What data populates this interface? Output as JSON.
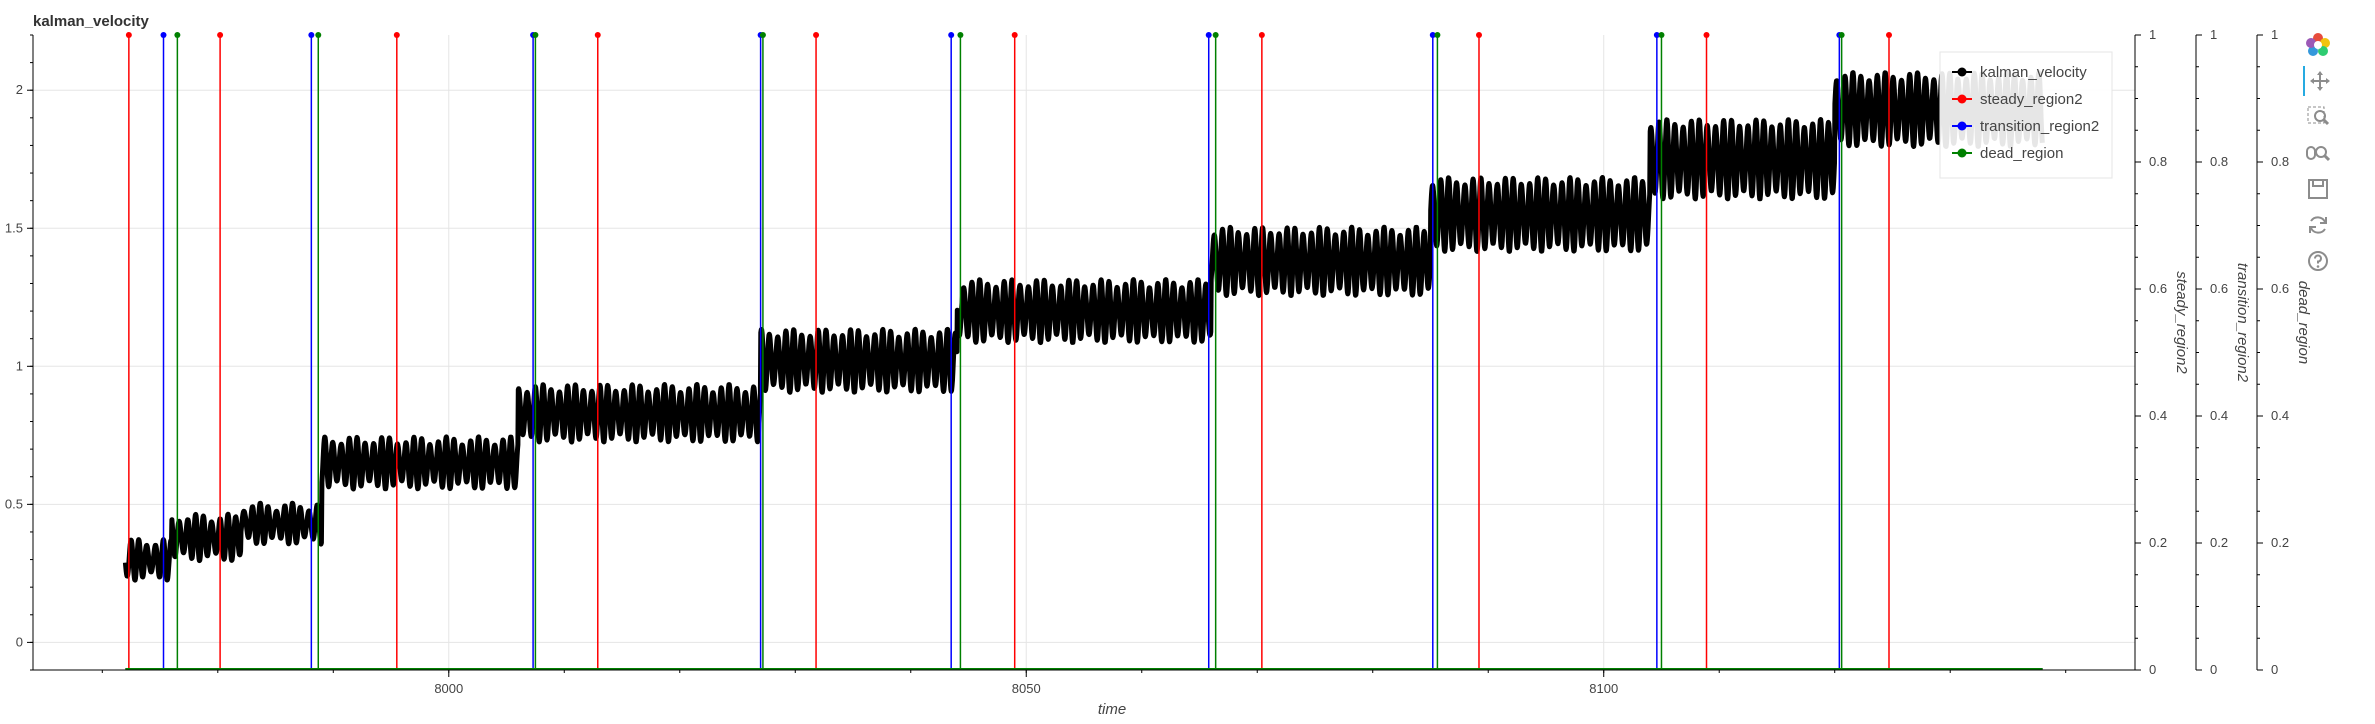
{
  "toolbar": {
    "items": [
      {
        "icon": "bokeh-logo-icon"
      },
      {
        "icon": "pan-icon"
      },
      {
        "icon": "box-zoom-icon"
      },
      {
        "icon": "wheel-zoom-icon"
      },
      {
        "icon": "save-icon"
      },
      {
        "icon": "reset-icon"
      },
      {
        "icon": "help-icon"
      }
    ]
  },
  "chart_data": {
    "type": "line",
    "title": "kalman_velocity",
    "xlabel": "time",
    "xlim": [
      7964,
      8146
    ],
    "ylim": [
      -0.1,
      2.2
    ],
    "x_ticks": [
      8000,
      8050,
      8100
    ],
    "y_ticks": [
      0,
      0.5,
      1,
      1.5,
      2
    ],
    "y_tick_labels": [
      "0",
      "0.5",
      "1",
      "1.5",
      "2"
    ],
    "grid": true,
    "legend_position": "top-right",
    "right_axes": [
      {
        "label": "steady_region2",
        "range": [
          0,
          1
        ],
        "ticks": [
          "0",
          "0.2",
          "0.4",
          "0.6",
          "0.8",
          "1"
        ]
      },
      {
        "label": "transition_region2",
        "range": [
          0,
          1
        ],
        "ticks": [
          "0",
          "0.2",
          "0.4",
          "0.6",
          "0.8",
          "1"
        ]
      },
      {
        "label": "dead_region",
        "range": [
          0,
          1
        ],
        "ticks": [
          "0",
          "0.2",
          "0.4",
          "0.6",
          "0.8",
          "1"
        ]
      }
    ],
    "series": [
      {
        "name": "kalman_velocity",
        "color": "#000000",
        "x_range": [
          7972,
          8138
        ],
        "segments": [
          {
            "x": [
              7972,
              7976
            ],
            "level": 0.3,
            "amplitude": 0.06
          },
          {
            "x": [
              7976,
              7982
            ],
            "level": 0.38,
            "amplitude": 0.07
          },
          {
            "x": [
              7982,
              7989
            ],
            "level": 0.43,
            "amplitude": 0.06
          },
          {
            "x": [
              7989,
              8006
            ],
            "level": 0.65,
            "amplitude": 0.08
          },
          {
            "x": [
              8006,
              8027
            ],
            "level": 0.83,
            "amplitude": 0.09
          },
          {
            "x": [
              8027,
              8044
            ],
            "level": 1.02,
            "amplitude": 0.1
          },
          {
            "x": [
              8044,
              8066
            ],
            "level": 1.2,
            "amplitude": 0.1
          },
          {
            "x": [
              8066,
              8085
            ],
            "level": 1.38,
            "amplitude": 0.11
          },
          {
            "x": [
              8085,
              8104
            ],
            "level": 1.55,
            "amplitude": 0.12
          },
          {
            "x": [
              8104,
              8120
            ],
            "level": 1.75,
            "amplitude": 0.13
          },
          {
            "x": [
              8120,
              8138
            ],
            "level": 1.93,
            "amplitude": 0.12
          }
        ]
      },
      {
        "name": "steady_region2",
        "color": "#ff0000",
        "spikes_x": [
          7972.3,
          7980.2,
          7995.5,
          8012.9,
          8031.8,
          8049.0,
          8070.4,
          8089.2,
          8108.9,
          8124.7
        ]
      },
      {
        "name": "transition_region2",
        "color": "#0000ff",
        "spikes_x": [
          7975.3,
          7988.1,
          8007.3,
          8027.0,
          8043.5,
          8065.8,
          8085.2,
          8104.6,
          8120.4
        ]
      },
      {
        "name": "dead_region",
        "color": "#008000",
        "spikes_x": [
          7976.5,
          7988.7,
          8007.5,
          8027.2,
          8044.3,
          8066.4,
          8085.6,
          8105.0,
          8120.6
        ]
      }
    ]
  }
}
